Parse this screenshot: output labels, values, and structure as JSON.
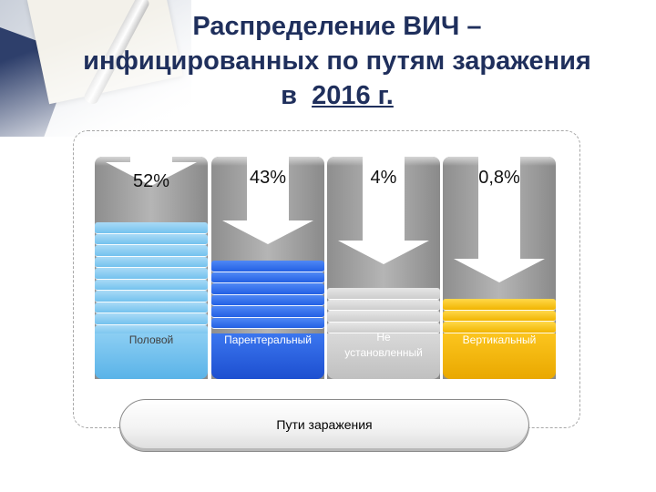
{
  "title": {
    "line1": "Распределение ВИЧ –",
    "line2": "инфицированных по путям заражения",
    "line3_prefix": "в",
    "line3_year": "2016 г."
  },
  "columns": [
    {
      "percent": "52%",
      "label": "Половой",
      "color": "#74c2ee"
    },
    {
      "percent": "43%",
      "label": "Парентеральный",
      "color": "#2360e4"
    },
    {
      "percent": "4%",
      "label_line1": "Не",
      "label_line2": "установленный",
      "color": "#cdcdcd"
    },
    {
      "percent": "0,8%",
      "label": "Вертикальный",
      "color": "#f1b400"
    }
  ],
  "footer": {
    "label": "Пути заражения"
  }
}
